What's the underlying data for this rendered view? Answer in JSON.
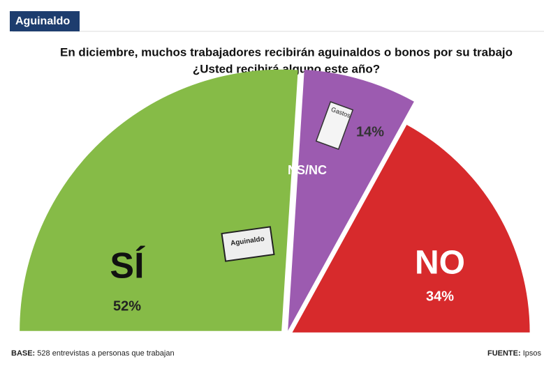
{
  "header": {
    "tag": "Aguinaldo"
  },
  "chart_data": {
    "type": "pie",
    "title": "En diciembre, muchos trabajadores recibirán aguinaldos o bonos por su trabajo",
    "subtitle": "¿Usted recibirá alguno este año?",
    "categories": [
      "SÍ",
      "NS/NC",
      "NO"
    ],
    "values": [
      52,
      14,
      34
    ],
    "value_labels": [
      "52%",
      "14%",
      "34%"
    ],
    "colors": [
      "#86bb47",
      "#9c5bb0",
      "#d72a2c"
    ],
    "illustration_texts": [
      "Aguinaldo",
      "Gastos"
    ]
  },
  "footer": {
    "base_label": "BASE:",
    "base_text": "528 entrevistas a personas que trabajan",
    "source_label": "FUENTE:",
    "source_text": "Ipsos"
  }
}
